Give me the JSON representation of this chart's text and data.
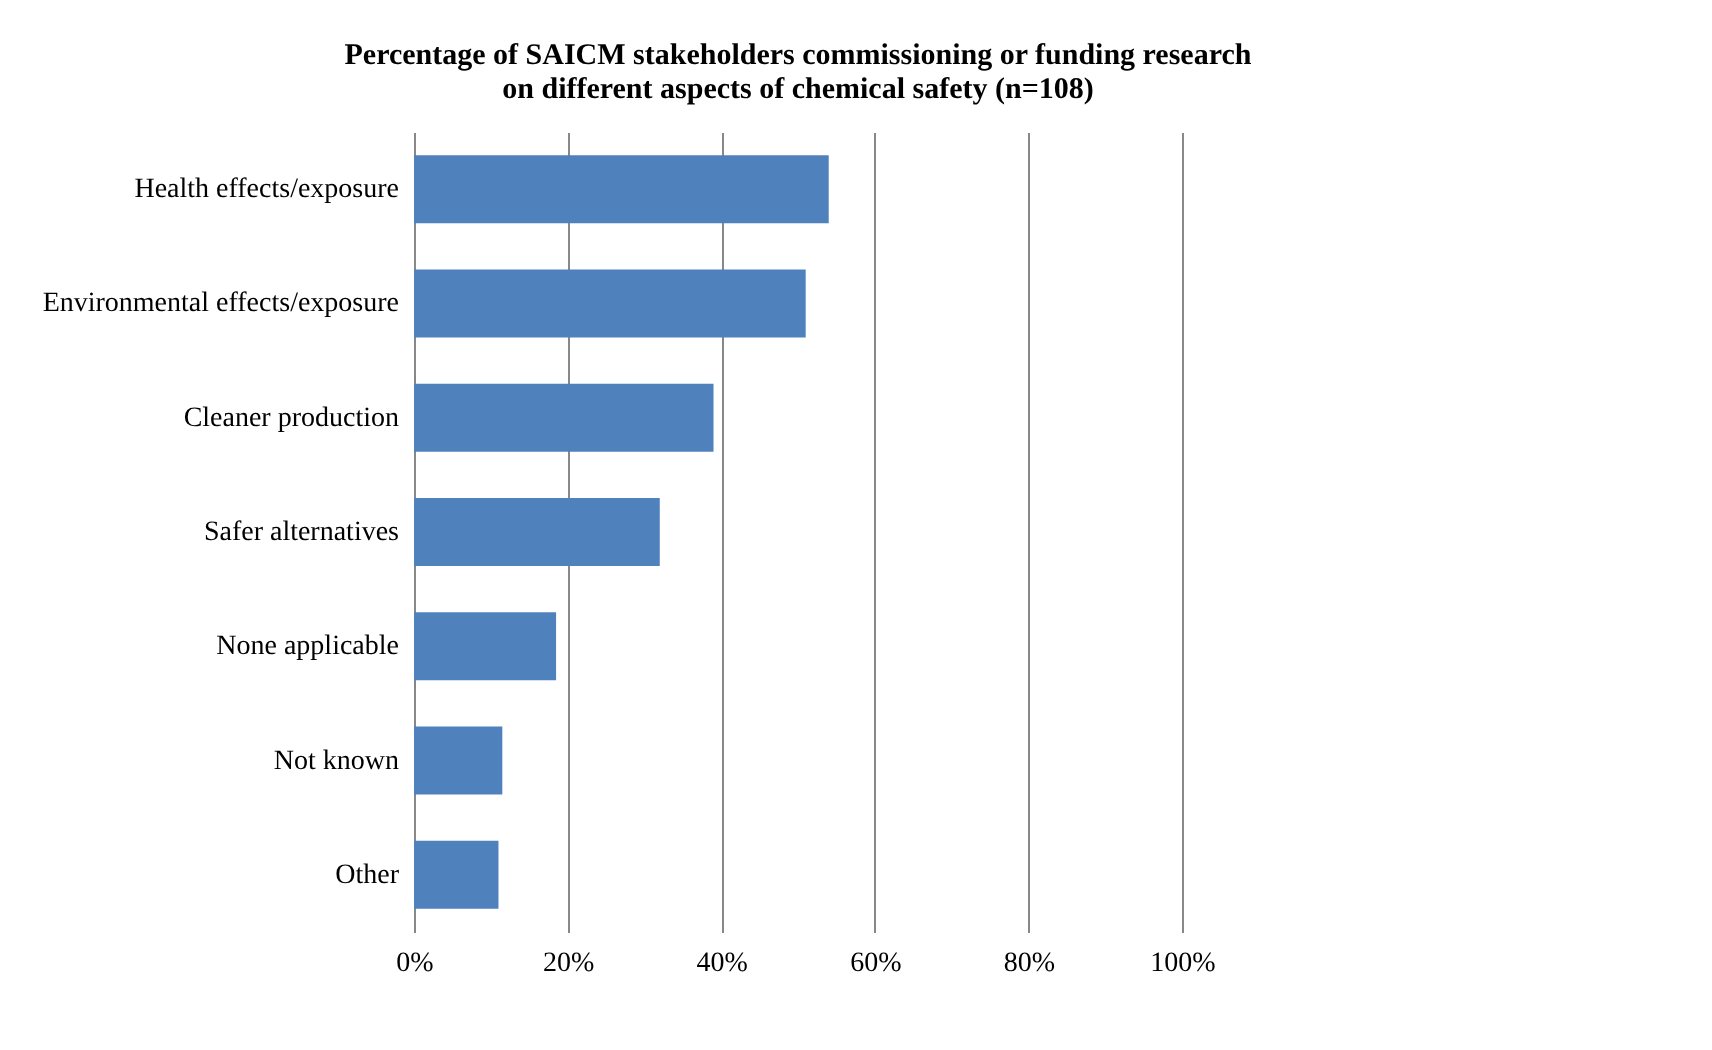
{
  "chart_data": {
    "type": "bar",
    "orientation": "horizontal",
    "title": [
      "Percentage of SAICM stakeholders commissioning or funding research",
      "on different aspects of chemical safety (n=108)"
    ],
    "categories": [
      "Health effects/exposure",
      "Environmental effects/exposure",
      "Cleaner production",
      "Safer alternatives",
      "None applicable",
      "Not known",
      "Other"
    ],
    "values": [
      54,
      51,
      39,
      32,
      18.5,
      11.5,
      11
    ],
    "color": "#4f81bd",
    "xlim": [
      0,
      100
    ],
    "xticks": [
      {
        "value": 0,
        "label": "0%"
      },
      {
        "value": 20,
        "label": "20%"
      },
      {
        "value": 40,
        "label": "40%"
      },
      {
        "value": 60,
        "label": "60%"
      },
      {
        "value": 80,
        "label": "80%"
      },
      {
        "value": 100,
        "label": "100%"
      }
    ],
    "grid": "x"
  }
}
